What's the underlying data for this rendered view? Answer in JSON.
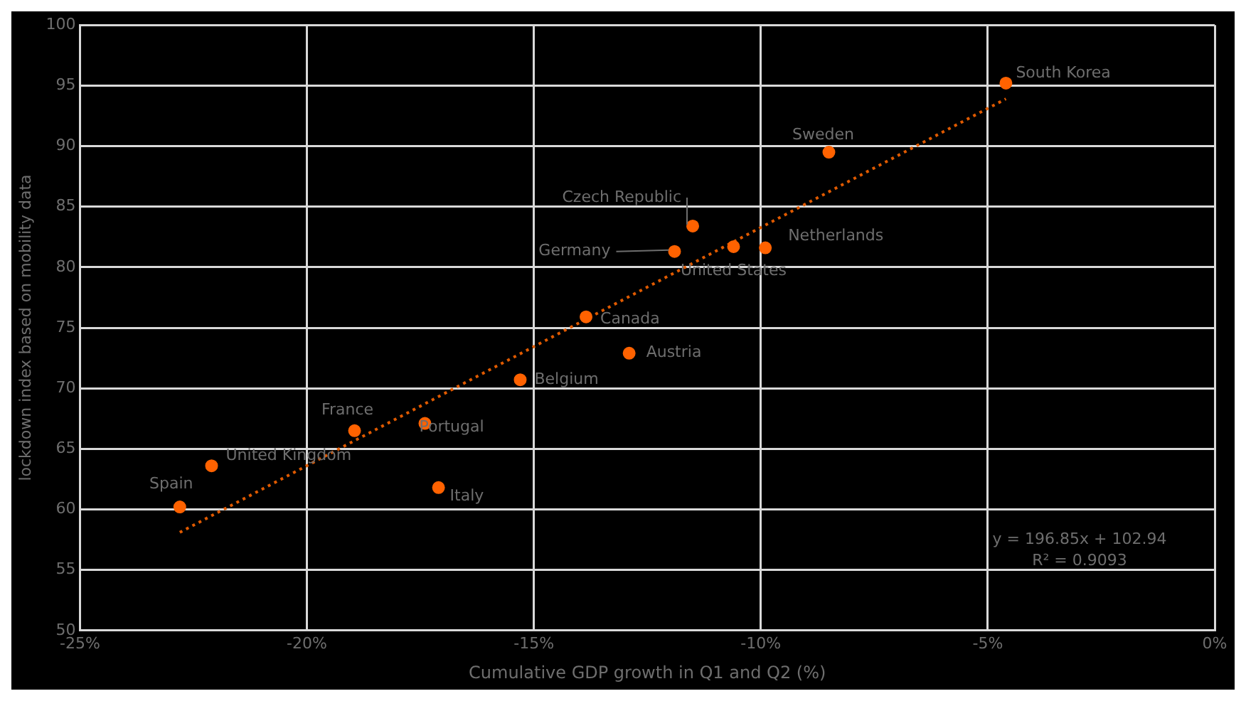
{
  "chart_data": {
    "type": "scatter",
    "xlabel": "Cumulative GDP growth in Q1 and Q2 (%)",
    "ylabel": "lockdown index based on mobility data",
    "xlim": [
      -25,
      0
    ],
    "xticks": [
      {
        "value": -25,
        "label": "-25%"
      },
      {
        "value": -20,
        "label": "-20%"
      },
      {
        "value": -15,
        "label": "-15%"
      },
      {
        "value": -10,
        "label": "-10%"
      },
      {
        "value": -5,
        "label": "-5%"
      },
      {
        "value": 0,
        "label": "0%"
      }
    ],
    "ylim": [
      50,
      100
    ],
    "yticks": [
      50,
      55,
      60,
      65,
      70,
      75,
      80,
      85,
      90,
      95,
      100
    ],
    "grid": true,
    "legend": false,
    "marker": "circle",
    "series": [
      {
        "type": "scatter",
        "color": "#ff6200",
        "x": [
          -4.6,
          -8.5,
          -11.5,
          -11.9,
          -10.6,
          -9.9,
          -13.85,
          -12.9,
          -15.3,
          -18.95,
          -17.4,
          -17.1,
          -22.1,
          -22.8
        ],
        "values": [
          95.2,
          89.5,
          83.4,
          81.3,
          81.7,
          81.6,
          75.9,
          72.9,
          70.7,
          66.5,
          67.1,
          61.8,
          63.6,
          60.2
        ]
      },
      {
        "type": "line",
        "color": "#e05a00",
        "line_style": "dotted",
        "marker": "none",
        "x": [
          -22.8,
          -4.6
        ],
        "values": [
          58.1,
          93.9
        ]
      }
    ],
    "annotations": [
      {
        "text": "South Korea",
        "x": -4.6,
        "y": 95.2
      },
      {
        "text": "Sweden",
        "x": -8.5,
        "y": 89.5
      },
      {
        "text": "Czech Republic",
        "x": -11.5,
        "y": 83.4
      },
      {
        "text": "Germany",
        "x": -11.9,
        "y": 81.3
      },
      {
        "text": "United States",
        "x": -10.6,
        "y": 81.7
      },
      {
        "text": "Netherlands",
        "x": -9.9,
        "y": 81.6
      },
      {
        "text": "Canada",
        "x": -13.85,
        "y": 75.9
      },
      {
        "text": "Austria",
        "x": -12.9,
        "y": 72.9
      },
      {
        "text": "Belgium",
        "x": -15.3,
        "y": 70.7
      },
      {
        "text": "France",
        "x": -18.95,
        "y": 66.5
      },
      {
        "text": "Portugal",
        "x": -17.4,
        "y": 67.1
      },
      {
        "text": "Italy",
        "x": -17.1,
        "y": 61.8
      },
      {
        "text": "United Kingdom",
        "x": -22.1,
        "y": 63.6
      },
      {
        "text": "Spain",
        "x": -22.8,
        "y": 60.2
      },
      "y = 196.85x + 102.94",
      "R² = 0.9093"
    ]
  }
}
